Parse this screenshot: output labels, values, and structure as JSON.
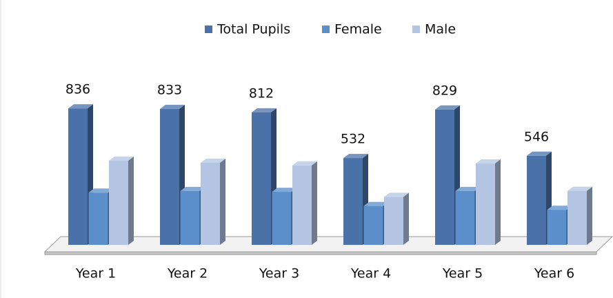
{
  "chart_data": {
    "type": "bar3d",
    "categories": [
      "Year 1",
      "Year 2",
      "Year 3",
      "Year 4",
      "Year 5",
      "Year 6"
    ],
    "series": [
      {
        "name": "Total Pupils",
        "color": "#4a72a8",
        "values": [
          836,
          833,
          812,
          532,
          829,
          546
        ],
        "labels": true
      },
      {
        "name": "Female",
        "color": "#5b8fcb",
        "values": [
          320,
          330,
          325,
          238,
          330,
          215
        ],
        "labels": false
      },
      {
        "name": "Male",
        "color": "#b3c5e3",
        "values": [
          516,
          503,
          487,
          294,
          499,
          331
        ],
        "labels": false
      }
    ],
    "ylim": [
      0,
      900
    ],
    "legend": "top"
  }
}
